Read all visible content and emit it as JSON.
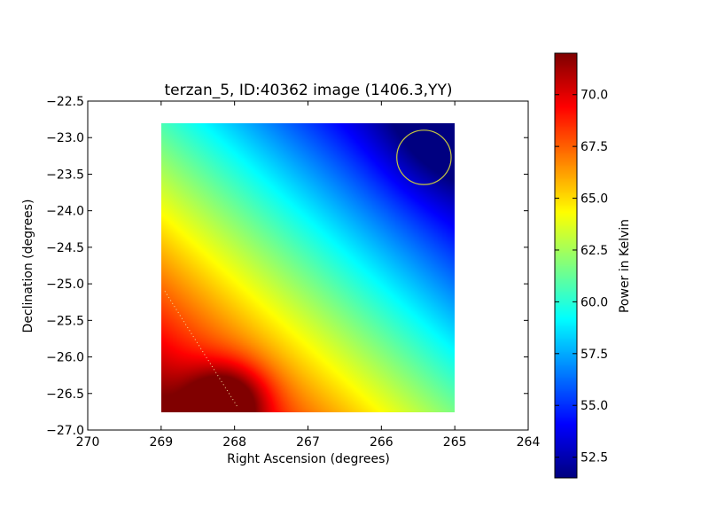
{
  "chart_data": {
    "type": "heatmap",
    "title": "terzan_5, ID:40362 image (1406.3,YY)",
    "xlabel": "Right Ascension (degrees)",
    "ylabel": "Declination (degrees)",
    "x_axis_inverted": true,
    "xlim": [
      270,
      264
    ],
    "ylim": [
      -27.0,
      -22.5
    ],
    "xticks": [
      "270",
      "269",
      "268",
      "267",
      "266",
      "265",
      "264"
    ],
    "yticks": [
      "−22.5",
      "−23.0",
      "−23.5",
      "−24.0",
      "−24.5",
      "−25.0",
      "−25.5",
      "−26.0",
      "−26.5",
      "−27.0"
    ],
    "image_extent": {
      "ra": [
        269,
        265
      ],
      "dec": [
        -26.75,
        -22.8
      ]
    },
    "value_range": [
      51.5,
      72.0
    ],
    "colormap": "jet",
    "colorbar": {
      "label": "Power in Kelvin",
      "ticks": [
        "52.5",
        "55.0",
        "57.5",
        "60.0",
        "62.5",
        "65.0",
        "67.5",
        "70.0"
      ]
    },
    "hotspot": {
      "ra": 268.1,
      "dec": -26.6,
      "value": 72.0
    },
    "coldspot": {
      "ra": 265.2,
      "dec": -23.0,
      "value": 51.5
    },
    "annotations": [
      {
        "type": "circle",
        "ra": 265.42,
        "dec": -23.27,
        "radius_deg": 0.37,
        "color": "#c8c840"
      },
      {
        "type": "dotted-line",
        "from": {
          "ra": 268.95,
          "dec": -25.1
        },
        "to": {
          "ra": 267.95,
          "dec": -26.7
        },
        "color": "#f0e0a0"
      }
    ]
  }
}
